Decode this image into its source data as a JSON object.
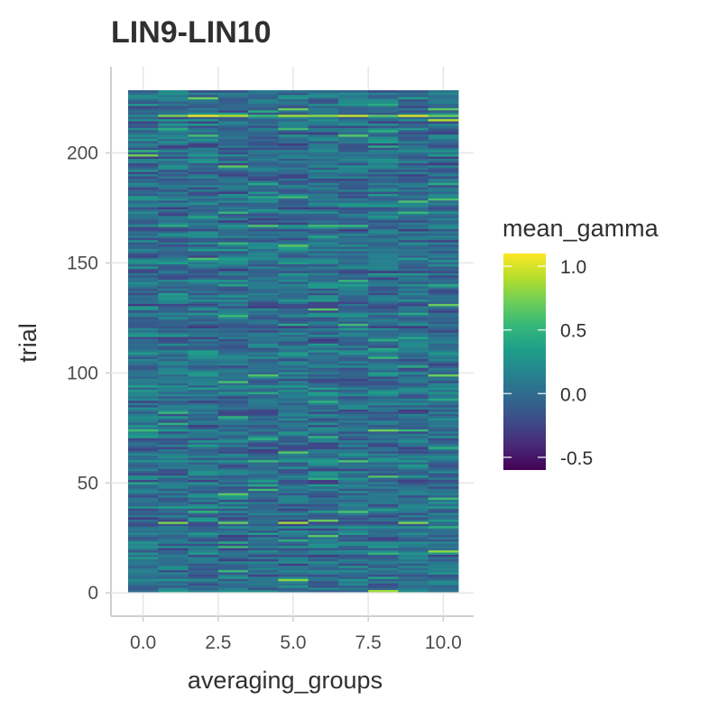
{
  "chart_data": {
    "type": "heatmap",
    "title": "LIN9-LIN10",
    "xlabel": "averaging_groups",
    "ylabel": "trial",
    "x_ticks": [
      0.0,
      2.5,
      5.0,
      7.5,
      10.0
    ],
    "x_tick_labels": [
      "0.0",
      "2.5",
      "5.0",
      "7.5",
      "10.0"
    ],
    "y_ticks": [
      0,
      50,
      100,
      150,
      200
    ],
    "y_tick_labels": [
      "0",
      "50",
      "100",
      "150",
      "200"
    ],
    "xlim": [
      -0.5,
      10.5
    ],
    "ylim": [
      0.5,
      228.5
    ],
    "x": [
      0,
      1,
      2,
      3,
      4,
      5,
      6,
      7,
      8,
      9,
      10
    ],
    "trials": [
      1,
      228
    ],
    "legend": {
      "title": "mean_gamma",
      "position": "right",
      "colormap": "viridis",
      "min": -0.6,
      "max": 1.1,
      "ticks": [
        1.0,
        0.5,
        0.0,
        -0.5
      ],
      "tick_labels": [
        "1.0",
        "0.5",
        "0.0",
        "-0.5"
      ]
    },
    "grid": true,
    "base_level": 0.02,
    "highlights": [
      {
        "trial": 217,
        "group": 0,
        "value": 0.2
      },
      {
        "trial": 217,
        "group": 1,
        "value": 0.75
      },
      {
        "trial": 217,
        "group": 2,
        "value": 1.05
      },
      {
        "trial": 217,
        "group": 3,
        "value": 0.9
      },
      {
        "trial": 217,
        "group": 4,
        "value": 0.55
      },
      {
        "trial": 217,
        "group": 5,
        "value": 0.85
      },
      {
        "trial": 217,
        "group": 6,
        "value": 0.8
      },
      {
        "trial": 217,
        "group": 7,
        "value": 0.95
      },
      {
        "trial": 217,
        "group": 8,
        "value": 0.65
      },
      {
        "trial": 217,
        "group": 9,
        "value": 1.0
      },
      {
        "trial": 217,
        "group": 10,
        "value": 0.7
      },
      {
        "trial": 32,
        "group": 1,
        "value": 0.75
      },
      {
        "trial": 32,
        "group": 3,
        "value": 0.7
      },
      {
        "trial": 32,
        "group": 5,
        "value": 0.85
      },
      {
        "trial": 32,
        "group": 9,
        "value": 0.75
      },
      {
        "trial": 64,
        "group": 5,
        "value": 0.65
      },
      {
        "trial": 60,
        "group": 4,
        "value": 0.55
      },
      {
        "trial": 158,
        "group": 5,
        "value": 0.65
      },
      {
        "trial": 180,
        "group": 5,
        "value": 0.55
      },
      {
        "trial": 6,
        "group": 5,
        "value": 0.8
      },
      {
        "trial": 1,
        "group": 8,
        "value": 0.85
      },
      {
        "trial": 19,
        "group": 10,
        "value": 0.8
      },
      {
        "trial": 131,
        "group": 10,
        "value": 0.7
      },
      {
        "trial": 215,
        "group": 10,
        "value": 0.9
      },
      {
        "trial": 43,
        "group": 10,
        "value": 0.55
      },
      {
        "trial": 37,
        "group": 7,
        "value": 0.6
      },
      {
        "trial": 33,
        "group": 6,
        "value": 0.7
      },
      {
        "trial": 26,
        "group": 6,
        "value": 0.65
      }
    ]
  }
}
